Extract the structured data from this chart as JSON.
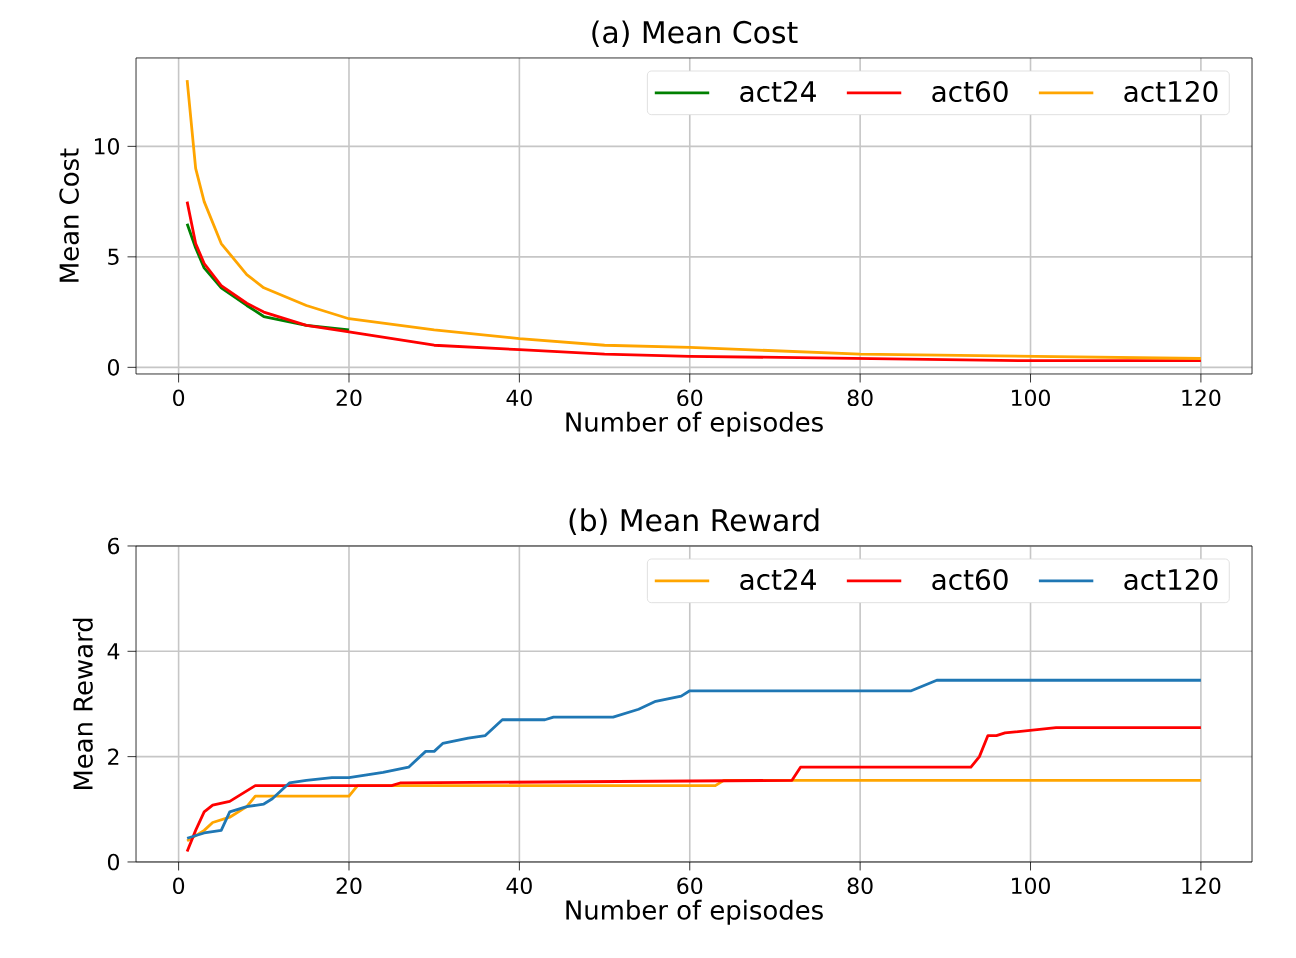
{
  "chart_data": [
    {
      "type": "line",
      "title": "(a) Mean Cost",
      "xlabel": "Number of episodes",
      "ylabel": "Mean Cost",
      "xlim": [
        -5,
        126
      ],
      "ylim": [
        -0.3,
        14
      ],
      "xticks": [
        0,
        20,
        40,
        60,
        80,
        100,
        120
      ],
      "yticks": [
        0,
        5,
        10
      ],
      "grid": true,
      "legend": "top right",
      "x": [
        1,
        2,
        3,
        5,
        8,
        10,
        15,
        20,
        30,
        40,
        50,
        60,
        80,
        100,
        120
      ],
      "series": [
        {
          "name": "act24",
          "color": "#008000",
          "values": [
            6.5,
            5.4,
            4.5,
            3.6,
            2.8,
            2.3,
            1.9,
            1.7,
            null,
            null,
            null,
            null,
            null,
            null,
            null
          ]
        },
        {
          "name": "act60",
          "color": "#ff0000",
          "values": [
            7.5,
            5.6,
            4.7,
            3.7,
            2.9,
            2.5,
            1.9,
            1.6,
            1.0,
            0.8,
            0.6,
            0.5,
            0.4,
            0.3,
            0.3
          ]
        },
        {
          "name": "act120",
          "color": "#ffa500",
          "values": [
            13,
            9,
            7.5,
            5.6,
            4.2,
            3.6,
            2.8,
            2.2,
            1.7,
            1.3,
            1.0,
            0.9,
            0.6,
            0.5,
            0.4
          ]
        }
      ]
    },
    {
      "type": "line",
      "title": "(b) Mean Reward",
      "xlabel": "Number of episodes",
      "ylabel": "Mean Reward",
      "xlim": [
        -5,
        126
      ],
      "ylim": [
        0,
        6
      ],
      "xticks": [
        0,
        20,
        40,
        60,
        80,
        100,
        120
      ],
      "yticks": [
        0,
        2,
        4,
        6
      ],
      "grid": true,
      "legend": "top right",
      "series": [
        {
          "name": "act24",
          "color": "#ffa500",
          "x": [
            1,
            3,
            4,
            6,
            8,
            9,
            20,
            21,
            63,
            64,
            120
          ],
          "values": [
            0.4,
            0.6,
            0.75,
            0.85,
            1.05,
            1.25,
            1.25,
            1.45,
            1.45,
            1.55,
            1.55
          ]
        },
        {
          "name": "act60",
          "color": "#ff0000",
          "x": [
            1,
            2,
            3,
            4,
            6,
            7,
            9,
            25,
            26,
            72,
            73,
            93,
            94,
            95,
            96,
            97,
            100,
            103,
            120
          ],
          "values": [
            0.2,
            0.6,
            0.95,
            1.08,
            1.15,
            1.25,
            1.45,
            1.45,
            1.5,
            1.55,
            1.8,
            1.8,
            2.0,
            2.4,
            2.4,
            2.45,
            2.5,
            2.55,
            2.55
          ]
        },
        {
          "name": "act120",
          "color": "#1f77b4",
          "x": [
            1,
            3,
            5,
            6,
            8,
            10,
            11,
            13,
            15,
            18,
            20,
            24,
            27,
            29,
            30,
            31,
            34,
            36,
            38,
            43,
            44,
            51,
            54,
            56,
            59,
            60,
            86,
            89,
            120
          ],
          "values": [
            0.45,
            0.55,
            0.6,
            0.95,
            1.05,
            1.1,
            1.2,
            1.5,
            1.55,
            1.6,
            1.6,
            1.7,
            1.8,
            2.1,
            2.1,
            2.25,
            2.35,
            2.4,
            2.7,
            2.7,
            2.75,
            2.75,
            2.9,
            3.05,
            3.15,
            3.25,
            3.25,
            3.45,
            3.45
          ]
        }
      ]
    }
  ]
}
